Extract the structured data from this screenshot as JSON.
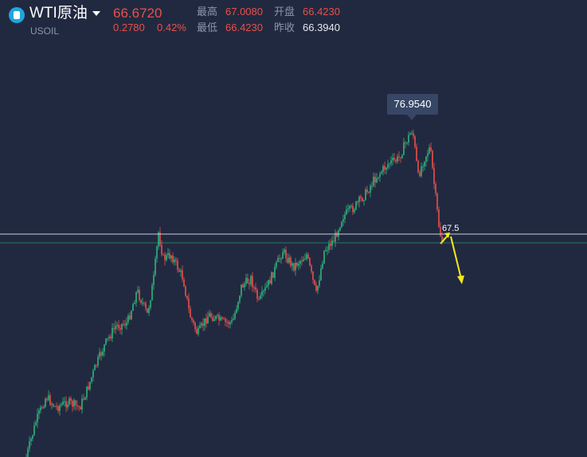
{
  "header": {
    "symbol_name": "WTI原油",
    "symbol_code": "USOIL",
    "price": "66.6720",
    "change": "0.2780",
    "change_pct": "0.42%",
    "high_label": "最高",
    "high_value": "67.0080",
    "open_label": "开盘",
    "open_value": "66.4230",
    "low_label": "最低",
    "low_value": "66.4230",
    "prev_close_label": "昨收",
    "prev_close_value": "66.3940"
  },
  "chart": {
    "peak_label": "76.9540",
    "line_label": "67.5",
    "colors": {
      "background": "#212940",
      "up": "#2fb57c",
      "down": "#e9504a",
      "level_line": "#c9ced8",
      "arrow": "#f3ea1a",
      "tooltip": "#374665"
    }
  },
  "chart_data": {
    "type": "candlestick",
    "annotations": [
      "76.9540",
      "67.5"
    ]
  }
}
